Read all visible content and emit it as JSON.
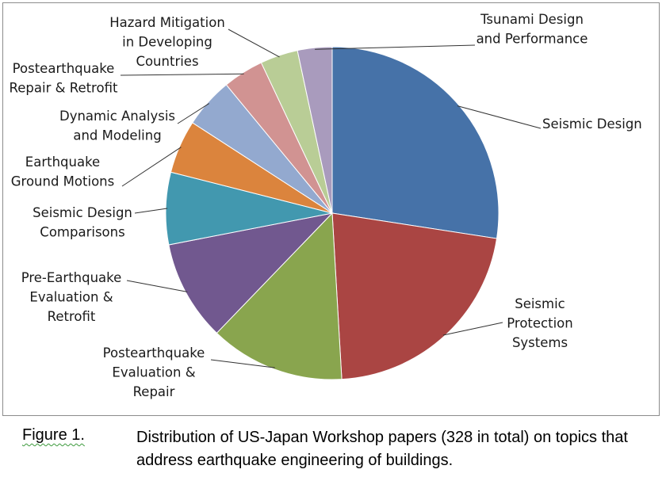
{
  "chart_data": {
    "type": "pie",
    "title": "",
    "slices": [
      {
        "label": "Seismic Design",
        "value": 90,
        "color": "#4672a8"
      },
      {
        "label": "Seismic Protection Systems",
        "value": 71,
        "color": "#aa4543"
      },
      {
        "label": "Postearthquake Evaluation & Repair",
        "value": 43,
        "color": "#89a54e"
      },
      {
        "label": "Pre-Earthquake Evaluation & Retrofit",
        "value": 32,
        "color": "#71588f"
      },
      {
        "label": "Seismic Design Comparisons",
        "value": 23,
        "color": "#4298af"
      },
      {
        "label": "Earthquake Ground Motions",
        "value": 17,
        "color": "#db843d"
      },
      {
        "label": "Dynamic Analysis and Modeling",
        "value": 16,
        "color": "#93a9cf"
      },
      {
        "label": "Postearthquake Repair & Retrofit",
        "value": 13,
        "color": "#d19392"
      },
      {
        "label": "Hazard Mitigation in Developing Countries",
        "value": 12,
        "color": "#b9cd96"
      },
      {
        "label": "Tsunami Design and Performance",
        "value": 11,
        "color": "#a99bbd"
      }
    ],
    "data_labels": [
      [
        "Seismic Design"
      ],
      [
        "Seismic",
        "Protection",
        "Systems"
      ],
      [
        "Postearthquake",
        "Evaluation &",
        "Repair"
      ],
      [
        "Pre-Earthquake",
        "Evaluation &",
        "Retrofit"
      ],
      [
        "Seismic Design",
        "Comparisons"
      ],
      [
        "Earthquake",
        "Ground Motions"
      ],
      [
        "Dynamic Analysis",
        "and Modeling"
      ],
      [
        "Postearthquake",
        "Repair & Retrofit"
      ],
      [
        "Hazard Mitigation",
        "in Developing",
        "Countries"
      ],
      [
        "Tsunami Design",
        "and Performance"
      ]
    ]
  },
  "caption": {
    "figure_label": "Figure 1.",
    "text": "Distribution of US-Japan Workshop papers (328 in total) on topics that address earthquake engineering of buildings."
  }
}
